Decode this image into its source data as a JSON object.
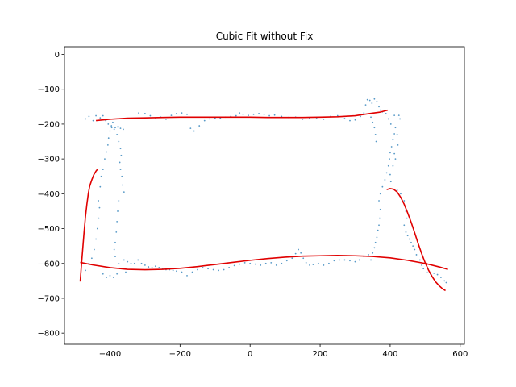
{
  "chart_data": {
    "type": "scatter",
    "title": "Cubic Fit without Fix",
    "xlabel": "",
    "ylabel": "",
    "xlim": [
      -530,
      612
    ],
    "ylim": [
      -832,
      22
    ],
    "xticks": [
      -400,
      -200,
      0,
      200,
      400,
      600
    ],
    "yticks": [
      0,
      -100,
      -200,
      -300,
      -400,
      -500,
      -600,
      -700,
      -800
    ],
    "grid": false,
    "colors": {
      "points": "#1f77b4",
      "fit": "#e00000"
    },
    "series": [
      {
        "type": "scatter",
        "points": [
          [
            -470,
            -185
          ],
          [
            -460,
            -178
          ],
          [
            -448,
            -190
          ],
          [
            -440,
            -176
          ],
          [
            -428,
            -182
          ],
          [
            -420,
            -176
          ],
          [
            -412,
            -190
          ],
          [
            -405,
            -200
          ],
          [
            -395,
            -210
          ],
          [
            -388,
            -215
          ],
          [
            -378,
            -208
          ],
          [
            -370,
            -212
          ],
          [
            -362,
            -215
          ],
          [
            -318,
            -168
          ],
          [
            -300,
            -170
          ],
          [
            -285,
            -176
          ],
          [
            -270,
            -182
          ],
          [
            -255,
            -180
          ],
          [
            -240,
            -186
          ],
          [
            -225,
            -175
          ],
          [
            -210,
            -170
          ],
          [
            -195,
            -168
          ],
          [
            -180,
            -172
          ],
          [
            -170,
            -212
          ],
          [
            -160,
            -220
          ],
          [
            -145,
            -205
          ],
          [
            -130,
            -190
          ],
          [
            -115,
            -185
          ],
          [
            -100,
            -183
          ],
          [
            -85,
            -183
          ],
          [
            -70,
            -180
          ],
          [
            -55,
            -178
          ],
          [
            -40,
            -176
          ],
          [
            -30,
            -168
          ],
          [
            -20,
            -172
          ],
          [
            -5,
            -175
          ],
          [
            10,
            -172
          ],
          [
            25,
            -170
          ],
          [
            40,
            -172
          ],
          [
            55,
            -176
          ],
          [
            70,
            -174
          ],
          [
            90,
            -178
          ],
          [
            110,
            -181
          ],
          [
            130,
            -180
          ],
          [
            150,
            -186
          ],
          [
            170,
            -183
          ],
          [
            190,
            -182
          ],
          [
            210,
            -186
          ],
          [
            230,
            -178
          ],
          [
            250,
            -176
          ],
          [
            270,
            -184
          ],
          [
            285,
            -190
          ],
          [
            300,
            -188
          ],
          [
            315,
            -178
          ],
          [
            325,
            -168
          ],
          [
            330,
            -145
          ],
          [
            335,
            -130
          ],
          [
            342,
            -132
          ],
          [
            348,
            -140
          ],
          [
            355,
            -128
          ],
          [
            362,
            -135
          ],
          [
            368,
            -150
          ],
          [
            372,
            -160
          ],
          [
            378,
            -165
          ],
          [
            345,
            -180
          ],
          [
            350,
            -195
          ],
          [
            355,
            -210
          ],
          [
            358,
            -230
          ],
          [
            360,
            -250
          ],
          [
            388,
            -170
          ],
          [
            395,
            -185
          ],
          [
            402,
            -200
          ],
          [
            412,
            -175
          ],
          [
            425,
            -175
          ],
          [
            428,
            -185
          ],
          [
            415,
            -210
          ],
          [
            420,
            -230
          ],
          [
            422,
            -260
          ],
          [
            412,
            -285
          ],
          [
            415,
            -300
          ],
          [
            408,
            -320
          ],
          [
            400,
            -345
          ],
          [
            402,
            -365
          ],
          [
            420,
            -390
          ],
          [
            430,
            -400
          ],
          [
            440,
            -420
          ],
          [
            445,
            -450
          ],
          [
            448,
            -470
          ],
          [
            440,
            -490
          ],
          [
            445,
            -510
          ],
          [
            450,
            -520
          ],
          [
            455,
            -530
          ],
          [
            460,
            -540
          ],
          [
            465,
            -550
          ],
          [
            470,
            -560
          ],
          [
            475,
            -575
          ],
          [
            485,
            -590
          ],
          [
            490,
            -605
          ],
          [
            495,
            -615
          ],
          [
            505,
            -625
          ],
          [
            515,
            -630
          ],
          [
            525,
            -628
          ],
          [
            535,
            -632
          ],
          [
            545,
            -640
          ],
          [
            555,
            -650
          ],
          [
            560,
            -655
          ],
          [
            -470,
            -620
          ],
          [
            -460,
            -600
          ],
          [
            -452,
            -585
          ],
          [
            -445,
            -560
          ],
          [
            -440,
            -530
          ],
          [
            -436,
            -500
          ],
          [
            -432,
            -470
          ],
          [
            -430,
            -440
          ],
          [
            -433,
            -420
          ],
          [
            -428,
            -380
          ],
          [
            -425,
            -350
          ],
          [
            -420,
            -330
          ],
          [
            -415,
            -300
          ],
          [
            -410,
            -280
          ],
          [
            -406,
            -260
          ],
          [
            -404,
            -240
          ],
          [
            -400,
            -220
          ],
          [
            -396,
            -205
          ],
          [
            -392,
            -195
          ],
          [
            -385,
            -210
          ],
          [
            -380,
            -230
          ],
          [
            -375,
            -250
          ],
          [
            -370,
            -270
          ],
          [
            -368,
            -290
          ],
          [
            -372,
            -310
          ],
          [
            -370,
            -330
          ],
          [
            -366,
            -350
          ],
          [
            -364,
            -375
          ],
          [
            -360,
            -395
          ],
          [
            -375,
            -420
          ],
          [
            -378,
            -450
          ],
          [
            -380,
            -480
          ],
          [
            -382,
            -510
          ],
          [
            -385,
            -540
          ],
          [
            -388,
            -560
          ],
          [
            -385,
            -580
          ],
          [
            -375,
            -600
          ],
          [
            -365,
            -615
          ],
          [
            -355,
            -625
          ],
          [
            -380,
            -630
          ],
          [
            -390,
            -640
          ],
          [
            -400,
            -635
          ],
          [
            -410,
            -640
          ],
          [
            -420,
            -630
          ],
          [
            -360,
            -590
          ],
          [
            -350,
            -595
          ],
          [
            -340,
            -600
          ],
          [
            -330,
            -600
          ],
          [
            -320,
            -590
          ],
          [
            -310,
            -600
          ],
          [
            -300,
            -605
          ],
          [
            -290,
            -610
          ],
          [
            -280,
            -612
          ],
          [
            -270,
            -608
          ],
          [
            -260,
            -612
          ],
          [
            -250,
            -615
          ],
          [
            -240,
            -618
          ],
          [
            -230,
            -618
          ],
          [
            -220,
            -620
          ],
          [
            -210,
            -622
          ],
          [
            -195,
            -625
          ],
          [
            -180,
            -635
          ],
          [
            -165,
            -625
          ],
          [
            -150,
            -618
          ],
          [
            -135,
            -612
          ],
          [
            -120,
            -615
          ],
          [
            -105,
            -618
          ],
          [
            -90,
            -620
          ],
          [
            -75,
            -618
          ],
          [
            -60,
            -612
          ],
          [
            -45,
            -606
          ],
          [
            -30,
            -602
          ],
          [
            -15,
            -598
          ],
          [
            0,
            -600
          ],
          [
            15,
            -602
          ],
          [
            30,
            -605
          ],
          [
            45,
            -600
          ],
          [
            60,
            -598
          ],
          [
            75,
            -605
          ],
          [
            90,
            -600
          ],
          [
            105,
            -592
          ],
          [
            120,
            -585
          ],
          [
            130,
            -572
          ],
          [
            138,
            -560
          ],
          [
            145,
            -570
          ],
          [
            152,
            -585
          ],
          [
            160,
            -598
          ],
          [
            170,
            -605
          ],
          [
            180,
            -603
          ],
          [
            195,
            -600
          ],
          [
            210,
            -605
          ],
          [
            225,
            -600
          ],
          [
            240,
            -592
          ],
          [
            255,
            -590
          ],
          [
            270,
            -590
          ],
          [
            285,
            -592
          ],
          [
            300,
            -595
          ],
          [
            312,
            -590
          ],
          [
            325,
            -580
          ],
          [
            338,
            -575
          ],
          [
            345,
            -590
          ],
          [
            350,
            -570
          ],
          [
            355,
            -555
          ],
          [
            358,
            -540
          ],
          [
            362,
            -525
          ],
          [
            365,
            -505
          ],
          [
            368,
            -490
          ],
          [
            370,
            -470
          ],
          [
            372,
            -445
          ],
          [
            368,
            -420
          ],
          [
            372,
            -400
          ],
          [
            378,
            -380
          ],
          [
            385,
            -360
          ],
          [
            390,
            -340
          ],
          [
            395,
            -320
          ],
          [
            398,
            -300
          ],
          [
            400,
            -282
          ],
          [
            404,
            -265
          ],
          [
            408,
            -245
          ],
          [
            412,
            -228
          ]
        ]
      },
      {
        "type": "line",
        "points": [
          [
            -440,
            -190
          ],
          [
            -400,
            -186
          ],
          [
            -350,
            -183
          ],
          [
            -300,
            -182
          ],
          [
            -250,
            -181
          ],
          [
            -200,
            -180
          ],
          [
            -150,
            -180
          ],
          [
            -100,
            -180
          ],
          [
            -50,
            -180
          ],
          [
            0,
            -180
          ],
          [
            50,
            -181
          ],
          [
            100,
            -181
          ],
          [
            150,
            -181
          ],
          [
            200,
            -180
          ],
          [
            250,
            -179
          ],
          [
            300,
            -176
          ],
          [
            340,
            -170
          ],
          [
            370,
            -166
          ],
          [
            393,
            -160
          ]
        ]
      },
      {
        "type": "line",
        "points": [
          [
            -485,
            -652
          ],
          [
            -482,
            -610
          ],
          [
            -478,
            -560
          ],
          [
            -474,
            -510
          ],
          [
            -470,
            -465
          ],
          [
            -466,
            -430
          ],
          [
            -462,
            -400
          ],
          [
            -458,
            -378
          ],
          [
            -452,
            -360
          ],
          [
            -446,
            -345
          ],
          [
            -440,
            -335
          ],
          [
            -436,
            -330
          ]
        ]
      },
      {
        "type": "line",
        "points": [
          [
            -485,
            -597
          ],
          [
            -450,
            -604
          ],
          [
            -400,
            -612
          ],
          [
            -350,
            -617
          ],
          [
            -300,
            -618
          ],
          [
            -250,
            -617
          ],
          [
            -200,
            -614
          ],
          [
            -150,
            -609
          ],
          [
            -100,
            -603
          ],
          [
            -50,
            -597
          ],
          [
            0,
            -591
          ],
          [
            50,
            -586
          ],
          [
            100,
            -582
          ],
          [
            150,
            -579
          ],
          [
            200,
            -578
          ],
          [
            250,
            -577
          ],
          [
            300,
            -578
          ],
          [
            350,
            -580
          ],
          [
            400,
            -584
          ],
          [
            450,
            -591
          ],
          [
            500,
            -600
          ],
          [
            540,
            -610
          ],
          [
            565,
            -617
          ]
        ]
      },
      {
        "type": "line",
        "points": [
          [
            390,
            -388
          ],
          [
            400,
            -385
          ],
          [
            410,
            -387
          ],
          [
            420,
            -395
          ],
          [
            430,
            -410
          ],
          [
            440,
            -430
          ],
          [
            450,
            -455
          ],
          [
            460,
            -482
          ],
          [
            470,
            -512
          ],
          [
            480,
            -543
          ],
          [
            490,
            -572
          ],
          [
            500,
            -598
          ],
          [
            510,
            -620
          ],
          [
            520,
            -638
          ],
          [
            530,
            -653
          ],
          [
            540,
            -664
          ],
          [
            550,
            -673
          ],
          [
            558,
            -678
          ]
        ]
      }
    ]
  }
}
